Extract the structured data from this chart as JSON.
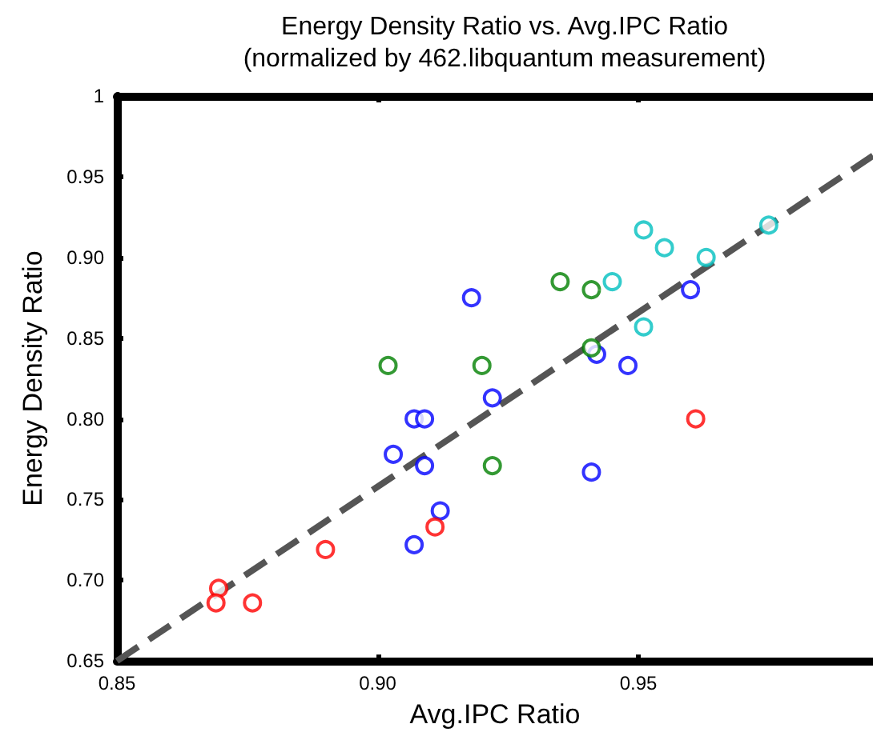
{
  "chart_data": {
    "type": "scatter",
    "title": "Energy Density Ratio vs. Avg.IPC Ratio",
    "subtitle": "(normalized by 462.libquantum measurement)",
    "xlabel": "Avg.IPC Ratio",
    "ylabel": "Energy Density Ratio",
    "xlim": [
      0.85,
      0.995
    ],
    "ylim": [
      0.65,
      1
    ],
    "xticks": [
      0.85,
      {
        "value": 0.9,
        "label": "0.90"
      },
      0.95
    ],
    "yticks": [
      0.65,
      {
        "value": 0.7,
        "label": "0.70"
      },
      0.75,
      {
        "value": 0.8,
        "label": "0.80"
      },
      0.85,
      {
        "value": 0.9,
        "label": "0.90"
      },
      0.95,
      1
    ],
    "grid": false,
    "marker": "circle",
    "series": [
      {
        "color": "#0000ff",
        "x": [
          0.918,
          0.96,
          0.942,
          0.948,
          0.922,
          0.907,
          0.909,
          0.903,
          0.909,
          0.912,
          0.907,
          0.941
        ],
        "values": [
          0.875,
          0.88,
          0.84,
          0.833,
          0.813,
          0.8,
          0.8,
          0.778,
          0.771,
          0.743,
          0.722,
          0.767
        ]
      },
      {
        "color": "#008000",
        "x": [
          0.902,
          0.92,
          0.935,
          0.941,
          0.941,
          0.922
        ],
        "values": [
          0.833,
          0.833,
          0.885,
          0.88,
          0.844,
          0.771
        ]
      },
      {
        "color": "#00bfbf",
        "x": [
          0.951,
          0.955,
          0.963,
          0.975,
          0.945,
          0.951
        ],
        "values": [
          0.917,
          0.906,
          0.9,
          0.92,
          0.885,
          0.857
        ]
      },
      {
        "color": "#ff0000",
        "x": [
          0.911,
          0.89,
          0.8695,
          0.869,
          0.876,
          0.961
        ],
        "values": [
          0.733,
          0.719,
          0.695,
          0.686,
          0.686,
          0.8
        ]
      },
      {
        "type": "line",
        "color": "#555555",
        "line_style": "dashed",
        "marker": "none",
        "x": [
          0.85,
          0.995
        ],
        "values": [
          0.65,
          0.963
        ]
      }
    ]
  }
}
